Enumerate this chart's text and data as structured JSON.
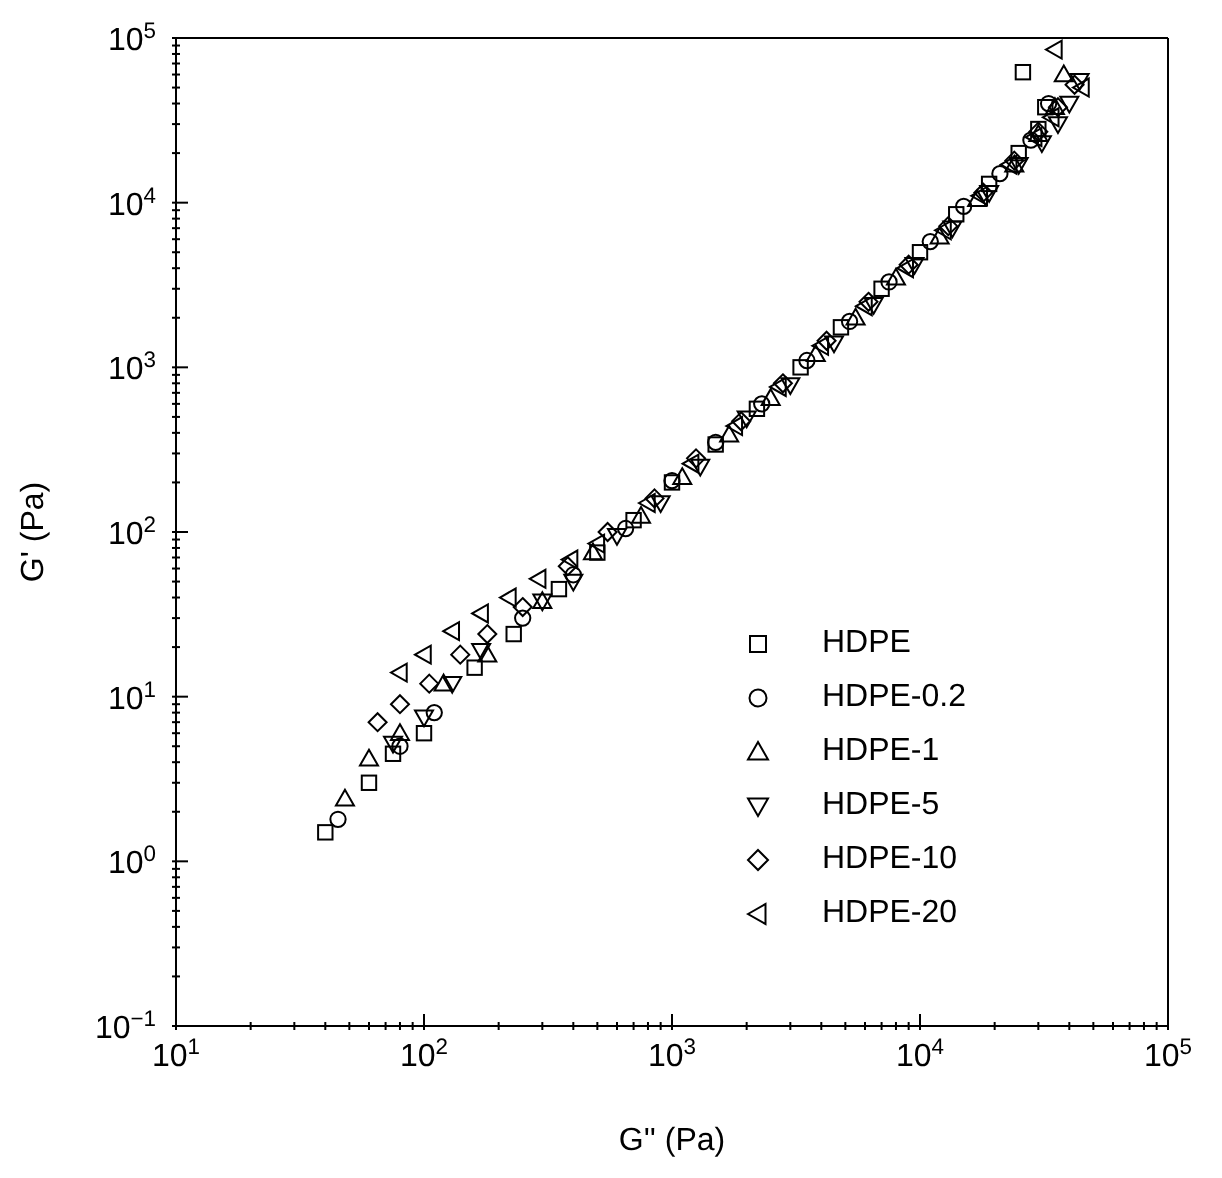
{
  "chart_data": {
    "type": "scatter",
    "xlabel": "G'' (Pa)",
    "ylabel": "G' (Pa)",
    "log": "xy",
    "legend": "right",
    "xlim": [
      10,
      100000
    ],
    "ylim": [
      0.1,
      100000
    ],
    "xticks": [
      {
        "value": 10,
        "label": "10$^{1}$"
      },
      {
        "value": 20,
        "label": null
      },
      {
        "value": 30,
        "label": null
      },
      {
        "value": 40,
        "label": null
      },
      {
        "value": 50,
        "label": null
      },
      {
        "value": 60,
        "label": null
      },
      {
        "value": 70,
        "label": null
      },
      {
        "value": 80,
        "label": null
      },
      {
        "value": 90,
        "label": null
      },
      {
        "value": 100,
        "label": "10$^{2}$"
      },
      {
        "value": 200,
        "label": null
      },
      {
        "value": 300,
        "label": null
      },
      {
        "value": 400,
        "label": null
      },
      {
        "value": 500,
        "label": null
      },
      {
        "value": 600,
        "label": null
      },
      {
        "value": 700,
        "label": null
      },
      {
        "value": 800,
        "label": null
      },
      {
        "value": 900,
        "label": null
      },
      {
        "value": 1000,
        "label": "10$^{3}$"
      },
      {
        "value": 2000,
        "label": null
      },
      {
        "value": 3000,
        "label": null
      },
      {
        "value": 4000,
        "label": null
      },
      {
        "value": 5000,
        "label": null
      },
      {
        "value": 6000,
        "label": null
      },
      {
        "value": 7000,
        "label": null
      },
      {
        "value": 8000,
        "label": null
      },
      {
        "value": 9000,
        "label": null
      },
      {
        "value": 10000,
        "label": "10$^{4}$"
      },
      {
        "value": 20000,
        "label": null
      },
      {
        "value": 30000,
        "label": null
      },
      {
        "value": 40000,
        "label": null
      },
      {
        "value": 50000,
        "label": null
      },
      {
        "value": 60000,
        "label": null
      },
      {
        "value": 70000,
        "label": null
      },
      {
        "value": 80000,
        "label": null
      },
      {
        "value": 90000,
        "label": null
      },
      {
        "value": 100000,
        "label": "10$^{5}$"
      }
    ],
    "yticks": [
      {
        "value": 0.1,
        "label": "10$^{−1}$"
      },
      {
        "value": 0.2,
        "label": null
      },
      {
        "value": 0.3,
        "label": null
      },
      {
        "value": 0.4,
        "label": null
      },
      {
        "value": 0.5,
        "label": null
      },
      {
        "value": 0.6,
        "label": null
      },
      {
        "value": 0.7,
        "label": null
      },
      {
        "value": 0.8,
        "label": null
      },
      {
        "value": 0.9,
        "label": null
      },
      {
        "value": 1,
        "label": "10$^{0}$"
      },
      {
        "value": 2,
        "label": null
      },
      {
        "value": 3,
        "label": null
      },
      {
        "value": 4,
        "label": null
      },
      {
        "value": 5,
        "label": null
      },
      {
        "value": 6,
        "label": null
      },
      {
        "value": 7,
        "label": null
      },
      {
        "value": 8,
        "label": null
      },
      {
        "value": 9,
        "label": null
      },
      {
        "value": 10,
        "label": "10$^{1}$"
      },
      {
        "value": 20,
        "label": null
      },
      {
        "value": 30,
        "label": null
      },
      {
        "value": 40,
        "label": null
      },
      {
        "value": 50,
        "label": null
      },
      {
        "value": 60,
        "label": null
      },
      {
        "value": 70,
        "label": null
      },
      {
        "value": 80,
        "label": null
      },
      {
        "value": 90,
        "label": null
      },
      {
        "value": 100,
        "label": "10$^{2}$"
      },
      {
        "value": 200,
        "label": null
      },
      {
        "value": 300,
        "label": null
      },
      {
        "value": 400,
        "label": null
      },
      {
        "value": 500,
        "label": null
      },
      {
        "value": 600,
        "label": null
      },
      {
        "value": 700,
        "label": null
      },
      {
        "value": 800,
        "label": null
      },
      {
        "value": 900,
        "label": null
      },
      {
        "value": 1000,
        "label": "10$^{3}$"
      },
      {
        "value": 2000,
        "label": null
      },
      {
        "value": 3000,
        "label": null
      },
      {
        "value": 4000,
        "label": null
      },
      {
        "value": 5000,
        "label": null
      },
      {
        "value": 6000,
        "label": null
      },
      {
        "value": 7000,
        "label": null
      },
      {
        "value": 8000,
        "label": null
      },
      {
        "value": 9000,
        "label": null
      },
      {
        "value": 10000,
        "label": "10$^{4}$"
      },
      {
        "value": 20000,
        "label": null
      },
      {
        "value": 30000,
        "label": null
      },
      {
        "value": 40000,
        "label": null
      },
      {
        "value": 50000,
        "label": null
      },
      {
        "value": 60000,
        "label": null
      },
      {
        "value": 70000,
        "label": null
      },
      {
        "value": 80000,
        "label": null
      },
      {
        "value": 90000,
        "label": null
      },
      {
        "value": 100000,
        "label": "10$^{5}$"
      }
    ],
    "series": [
      {
        "name": "HDPE",
        "color": "#000000",
        "marker": "square",
        "x": [
          40,
          60,
          75,
          100,
          160,
          230,
          350,
          500,
          700,
          1000,
          1500,
          2200,
          3300,
          4800,
          7000,
          10000,
          14000,
          19000,
          25000,
          30000,
          32000,
          26000
        ],
        "values": [
          1.5,
          3,
          4.5,
          6,
          15,
          24,
          45,
          75,
          118,
          200,
          340,
          560,
          1000,
          1750,
          3000,
          5000,
          8500,
          13000,
          20000,
          28000,
          38000,
          62000
        ]
      },
      {
        "name": "HDPE-0.2",
        "color": "#000000",
        "marker": "circle",
        "x": [
          45,
          80,
          110,
          250,
          400,
          650,
          1000,
          1500,
          2300,
          3500,
          5200,
          7500,
          11000,
          15000,
          21000,
          28000,
          33000
        ],
        "values": [
          1.8,
          5,
          8,
          30,
          55,
          105,
          205,
          350,
          600,
          1100,
          1900,
          3300,
          5800,
          9500,
          15000,
          24000,
          40000
        ]
      },
      {
        "name": "HDPE-1",
        "color": "#000000",
        "marker": "triangle",
        "x": [
          48,
          60,
          80,
          120,
          180,
          300,
          480,
          750,
          1100,
          1700,
          2500,
          3800,
          5500,
          8000,
          12000,
          17000,
          24000,
          30000,
          35000,
          38000
        ],
        "values": [
          2.4,
          4.2,
          6,
          12,
          18,
          38,
          75,
          125,
          215,
          390,
          650,
          1200,
          2000,
          3500,
          6200,
          10500,
          17000,
          26000,
          38000,
          60000
        ]
      },
      {
        "name": "HDPE-5",
        "color": "#000000",
        "marker": "triangle-down",
        "x": [
          75,
          100,
          130,
          170,
          300,
          400,
          600,
          900,
          1300,
          2000,
          3000,
          4500,
          6500,
          9500,
          13500,
          19000,
          25000,
          31000,
          36000,
          40000,
          44000
        ],
        "values": [
          5.2,
          7.5,
          12,
          19,
          38,
          50,
          95,
          150,
          250,
          490,
          780,
          1400,
          2400,
          4200,
          7000,
          11500,
          17000,
          23000,
          30000,
          40000,
          55000
        ]
      },
      {
        "name": "HDPE-10",
        "color": "#000000",
        "marker": "diamond",
        "x": [
          65,
          80,
          105,
          140,
          180,
          250,
          380,
          550,
          850,
          1250,
          1900,
          2800,
          4200,
          6200,
          9000,
          13000,
          18000,
          24000,
          30000,
          36000,
          42000
        ],
        "values": [
          7,
          9,
          12,
          18,
          24,
          35,
          62,
          100,
          160,
          280,
          470,
          800,
          1450,
          2500,
          4200,
          7200,
          11500,
          18000,
          27000,
          38000,
          52000
        ]
      },
      {
        "name": "HDPE-20",
        "color": "#000000",
        "marker": "triangle-left",
        "x": [
          80,
          100,
          130,
          170,
          220,
          290,
          390,
          500,
          800,
          1200,
          1800,
          2700,
          4000,
          6000,
          8800,
          12500,
          17500,
          23000,
          29000,
          34000,
          45000,
          35000
        ],
        "values": [
          14,
          18,
          25,
          32,
          40,
          52,
          68,
          85,
          150,
          260,
          440,
          760,
          1350,
          2350,
          4000,
          6800,
          11000,
          17000,
          25000,
          33000,
          50000,
          85000
        ]
      }
    ]
  }
}
